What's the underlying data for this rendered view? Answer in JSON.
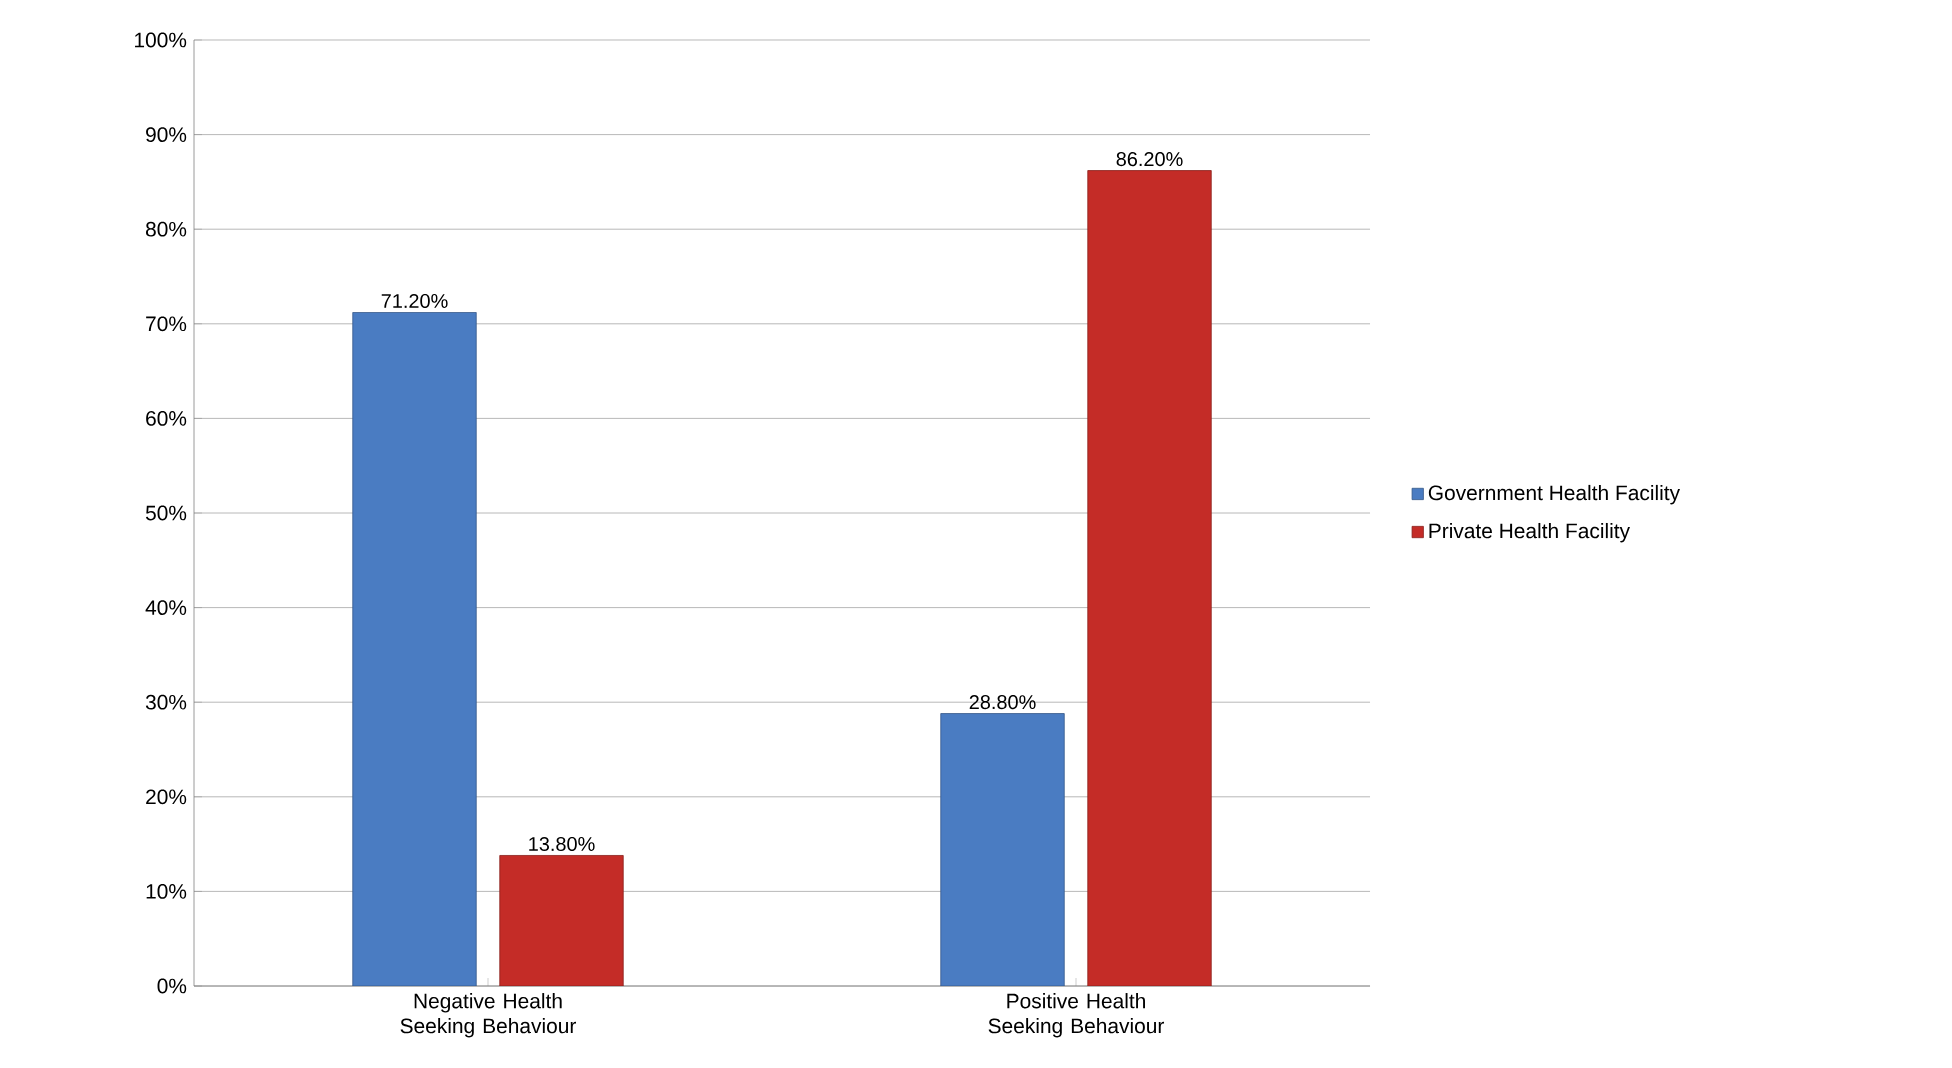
{
  "chart_data": {
    "type": "bar",
    "categories": [
      "Negative Health Seeking Behaviour",
      "Positive Health Seeking Behaviour"
    ],
    "series": [
      {
        "name": "Government Health Facility",
        "color": "#4a7cc2",
        "values": [
          71.2,
          28.8
        ],
        "value_labels": [
          "71.20%",
          "28.80%"
        ]
      },
      {
        "name": "Private Health Facility",
        "color": "#c42c27",
        "values": [
          13.8,
          86.2
        ],
        "value_labels": [
          "13.80%",
          "86.20%"
        ]
      }
    ],
    "ylim": [
      0,
      100
    ],
    "yticks": [
      {
        "value": 0,
        "label": "0%"
      },
      {
        "value": 10,
        "label": "10%"
      },
      {
        "value": 20,
        "label": "20%"
      },
      {
        "value": 30,
        "label": "30%"
      },
      {
        "value": 40,
        "label": "40%"
      },
      {
        "value": 50,
        "label": "50%"
      },
      {
        "value": 60,
        "label": "60%"
      },
      {
        "value": 70,
        "label": "70%"
      },
      {
        "value": 80,
        "label": "80%"
      },
      {
        "value": 90,
        "label": "90%"
      },
      {
        "value": 100,
        "label": "100%"
      }
    ],
    "grid": "y",
    "legend": "right"
  }
}
